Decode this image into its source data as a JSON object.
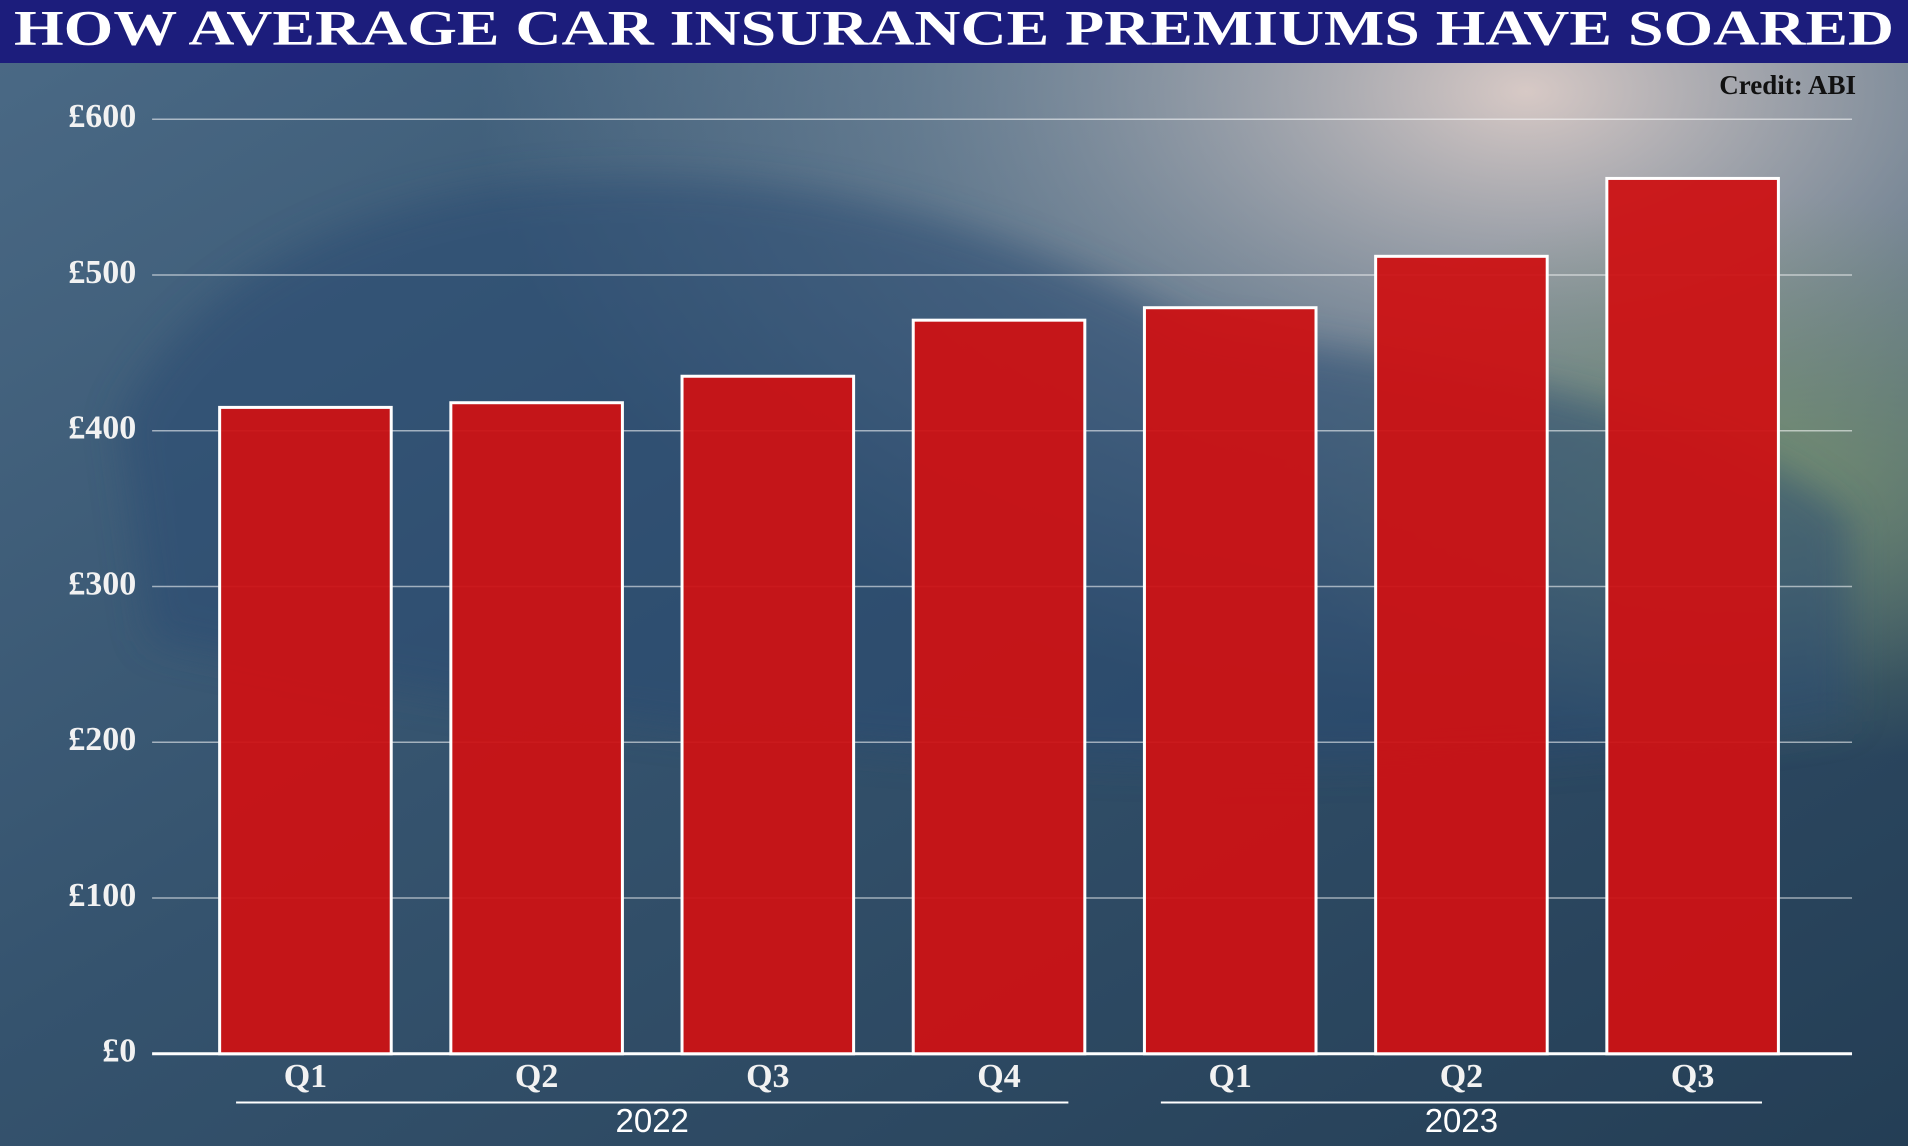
{
  "chart_data": {
    "type": "bar",
    "title": "HOW AVERAGE CAR INSURANCE PREMIUMS HAVE SOARED",
    "credit": "Credit: ABI",
    "groups": [
      {
        "name": "2022",
        "categories": [
          "Q1",
          "Q2",
          "Q3",
          "Q4"
        ]
      },
      {
        "name": "2023",
        "categories": [
          "Q1",
          "Q2",
          "Q3"
        ]
      }
    ],
    "values": [
      415,
      418,
      435,
      471,
      479,
      512,
      562
    ],
    "color": "#cc1214",
    "ylim": [
      0,
      600
    ],
    "yticks": [
      {
        "value": 0,
        "label": "£0"
      },
      {
        "value": 100,
        "label": "£100"
      },
      {
        "value": 200,
        "label": "£200"
      },
      {
        "value": 300,
        "label": "£300"
      },
      {
        "value": 400,
        "label": "£400"
      },
      {
        "value": 500,
        "label": "£500"
      },
      {
        "value": 600,
        "label": "£600"
      }
    ],
    "grid": true
  }
}
